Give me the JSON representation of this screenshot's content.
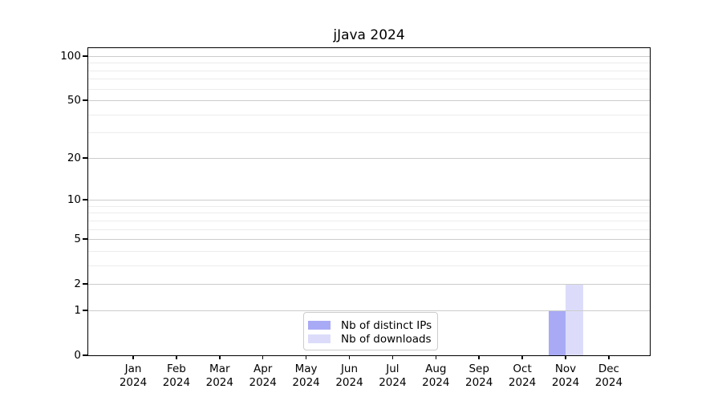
{
  "title": "jJava 2024",
  "chart_data": {
    "type": "bar",
    "title": "jJava 2024",
    "categories": [
      "Jan 2024",
      "Feb 2024",
      "Mar 2024",
      "Apr 2024",
      "May 2024",
      "Jun 2024",
      "Jul 2024",
      "Aug 2024",
      "Sep 2024",
      "Oct 2024",
      "Nov 2024",
      "Dec 2024"
    ],
    "series": [
      {
        "name": "Nb of distinct IPs",
        "color": "#a9aaf5",
        "values": [
          0,
          0,
          0,
          0,
          0,
          0,
          0,
          0,
          0,
          0,
          1,
          0
        ]
      },
      {
        "name": "Nb of downloads",
        "color": "#dcdcfa",
        "values": [
          0,
          0,
          0,
          0,
          0,
          0,
          0,
          0,
          0,
          0,
          2,
          0
        ]
      }
    ],
    "xlabel": "",
    "ylabel": "",
    "y_axis": {
      "scale": "log1p",
      "major_ticks": [
        0,
        1,
        2,
        5,
        10,
        20,
        50,
        100
      ],
      "minor_ticks": [
        3,
        4,
        6,
        7,
        8,
        9,
        30,
        40,
        60,
        70,
        80,
        90
      ],
      "max": 113
    },
    "grid": true,
    "legend_position": "lower center",
    "colors": {
      "grid_major": "#cccccc",
      "grid_minor": "#ececec",
      "axis": "#000000",
      "legend_border": "#cccccc",
      "background": "#ffffff"
    }
  }
}
